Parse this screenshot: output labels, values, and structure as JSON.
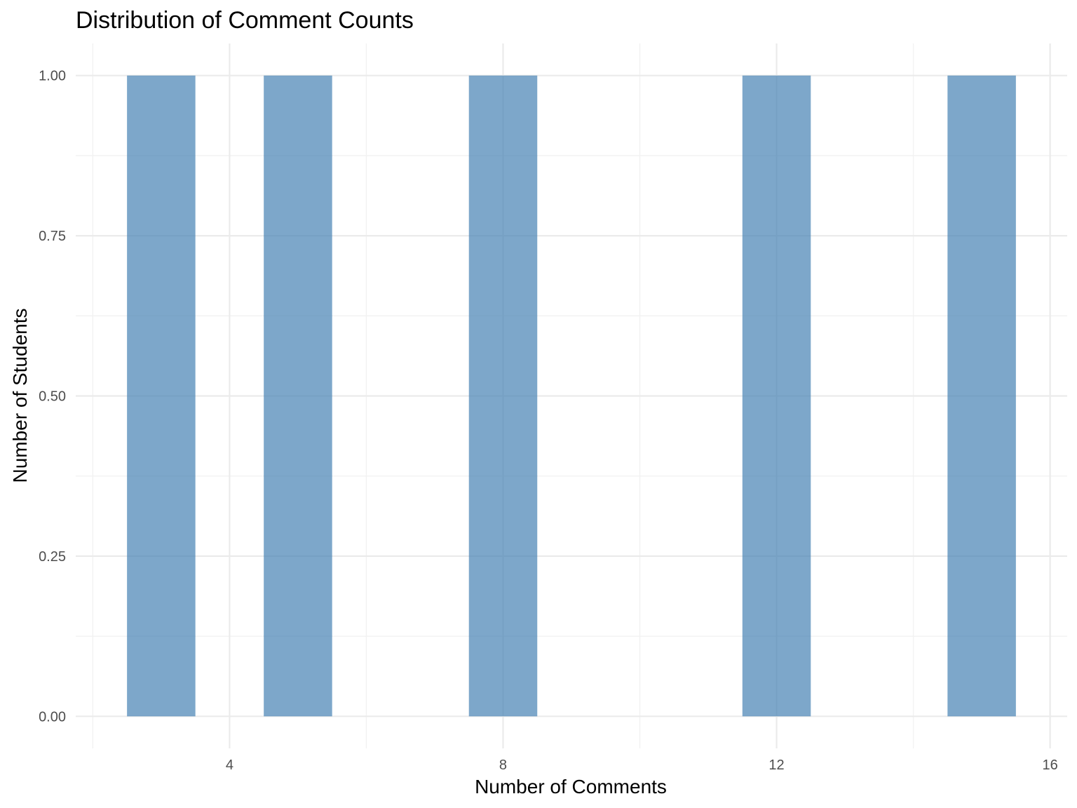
{
  "chart_data": {
    "type": "bar",
    "title": "Distribution of Comment Counts",
    "xlabel": "Number of Comments",
    "ylabel": "Number of Students",
    "bars": [
      {
        "x": 3,
        "value": 1
      },
      {
        "x": 5,
        "value": 1
      },
      {
        "x": 8,
        "value": 1
      },
      {
        "x": 12,
        "value": 1
      },
      {
        "x": 15,
        "value": 1
      }
    ],
    "bin_width": 1,
    "xlim": [
      1.75,
      16.25
    ],
    "ylim": [
      -0.05,
      1.05
    ],
    "x_ticks": [
      {
        "value": 4,
        "label": "4"
      },
      {
        "value": 8,
        "label": "8"
      },
      {
        "value": 12,
        "label": "12"
      },
      {
        "value": 16,
        "label": "16"
      }
    ],
    "x_minor_ticks": [
      2,
      6,
      10,
      14
    ],
    "y_ticks": [
      {
        "value": 0,
        "label": "0.00"
      },
      {
        "value": 0.25,
        "label": "0.25"
      },
      {
        "value": 0.5,
        "label": "0.50"
      },
      {
        "value": 0.75,
        "label": "0.75"
      },
      {
        "value": 1,
        "label": "1.00"
      }
    ],
    "y_minor_ticks": [
      0.125,
      0.375,
      0.625,
      0.875
    ],
    "grid": true,
    "legend": "none",
    "colors": {
      "bar_fill": "#4682b4",
      "bar_opacity": 0.7
    }
  }
}
